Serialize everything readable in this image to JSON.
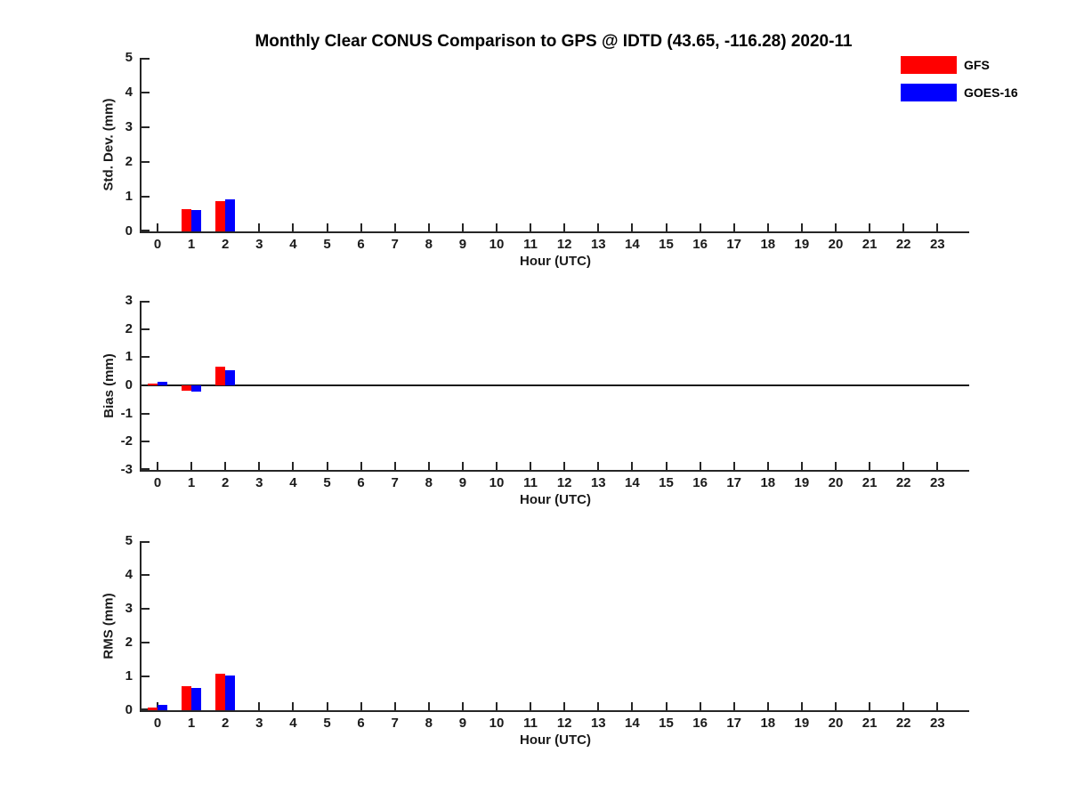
{
  "page": {
    "title": "Monthly Clear CONUS Comparison to GPS @ IDTD (43.65, -116.28) 2020-11"
  },
  "legend": {
    "position": "top-right",
    "entries": [
      {
        "label": "GFS",
        "color": "#ff0000"
      },
      {
        "label": "GOES-16",
        "color": "#0000ff"
      }
    ]
  },
  "chart_data": [
    {
      "type": "bar",
      "panel": "std-dev",
      "ylabel": "Std. Dev. (mm)",
      "xlabel": "Hour (UTC)",
      "ylim": [
        0,
        5
      ],
      "yticks": [
        0,
        1,
        2,
        3,
        4,
        5
      ],
      "grid": false,
      "categories": [
        "0",
        "1",
        "2",
        "3",
        "4",
        "5",
        "6",
        "7",
        "8",
        "9",
        "10",
        "11",
        "12",
        "13",
        "14",
        "15",
        "16",
        "17",
        "18",
        "19",
        "20",
        "21",
        "22",
        "23"
      ],
      "series": [
        {
          "name": "GFS",
          "color": "#ff0000",
          "values": [
            0,
            0.65,
            0.88,
            null,
            null,
            null,
            null,
            null,
            null,
            null,
            null,
            null,
            null,
            null,
            null,
            null,
            null,
            null,
            null,
            null,
            null,
            null,
            null,
            null
          ]
        },
        {
          "name": "GOES-16",
          "color": "#0000ff",
          "values": [
            0,
            0.62,
            0.92,
            null,
            null,
            null,
            null,
            null,
            null,
            null,
            null,
            null,
            null,
            null,
            null,
            null,
            null,
            null,
            null,
            null,
            null,
            null,
            null,
            null
          ]
        }
      ]
    },
    {
      "type": "bar",
      "panel": "bias",
      "ylabel": "Bias (mm)",
      "xlabel": "Hour (UTC)",
      "ylim": [
        -3,
        3
      ],
      "yticks": [
        -3,
        -2,
        -1,
        0,
        1,
        2,
        3
      ],
      "zero_line": true,
      "grid": false,
      "categories": [
        "0",
        "1",
        "2",
        "3",
        "4",
        "5",
        "6",
        "7",
        "8",
        "9",
        "10",
        "11",
        "12",
        "13",
        "14",
        "15",
        "16",
        "17",
        "18",
        "19",
        "20",
        "21",
        "22",
        "23"
      ],
      "series": [
        {
          "name": "GFS",
          "color": "#ff0000",
          "values": [
            0.06,
            -0.18,
            0.65,
            null,
            null,
            null,
            null,
            null,
            null,
            null,
            null,
            null,
            null,
            null,
            null,
            null,
            null,
            null,
            null,
            null,
            null,
            null,
            null,
            null
          ]
        },
        {
          "name": "GOES-16",
          "color": "#0000ff",
          "values": [
            0.12,
            -0.22,
            0.53,
            null,
            null,
            null,
            null,
            null,
            null,
            null,
            null,
            null,
            null,
            null,
            null,
            null,
            null,
            null,
            null,
            null,
            null,
            null,
            null,
            null
          ]
        }
      ]
    },
    {
      "type": "bar",
      "panel": "rms",
      "ylabel": "RMS (mm)",
      "xlabel": "Hour (UTC)",
      "ylim": [
        0,
        5
      ],
      "yticks": [
        0,
        1,
        2,
        3,
        4,
        5
      ],
      "grid": false,
      "categories": [
        "0",
        "1",
        "2",
        "3",
        "4",
        "5",
        "6",
        "7",
        "8",
        "9",
        "10",
        "11",
        "12",
        "13",
        "14",
        "15",
        "16",
        "17",
        "18",
        "19",
        "20",
        "21",
        "22",
        "23"
      ],
      "series": [
        {
          "name": "GFS",
          "color": "#ff0000",
          "values": [
            0.08,
            0.7,
            1.08,
            null,
            null,
            null,
            null,
            null,
            null,
            null,
            null,
            null,
            null,
            null,
            null,
            null,
            null,
            null,
            null,
            null,
            null,
            null,
            null,
            null
          ]
        },
        {
          "name": "GOES-16",
          "color": "#0000ff",
          "values": [
            0.15,
            0.66,
            1.03,
            null,
            null,
            null,
            null,
            null,
            null,
            null,
            null,
            null,
            null,
            null,
            null,
            null,
            null,
            null,
            null,
            null,
            null,
            null,
            null,
            null
          ]
        }
      ]
    }
  ]
}
